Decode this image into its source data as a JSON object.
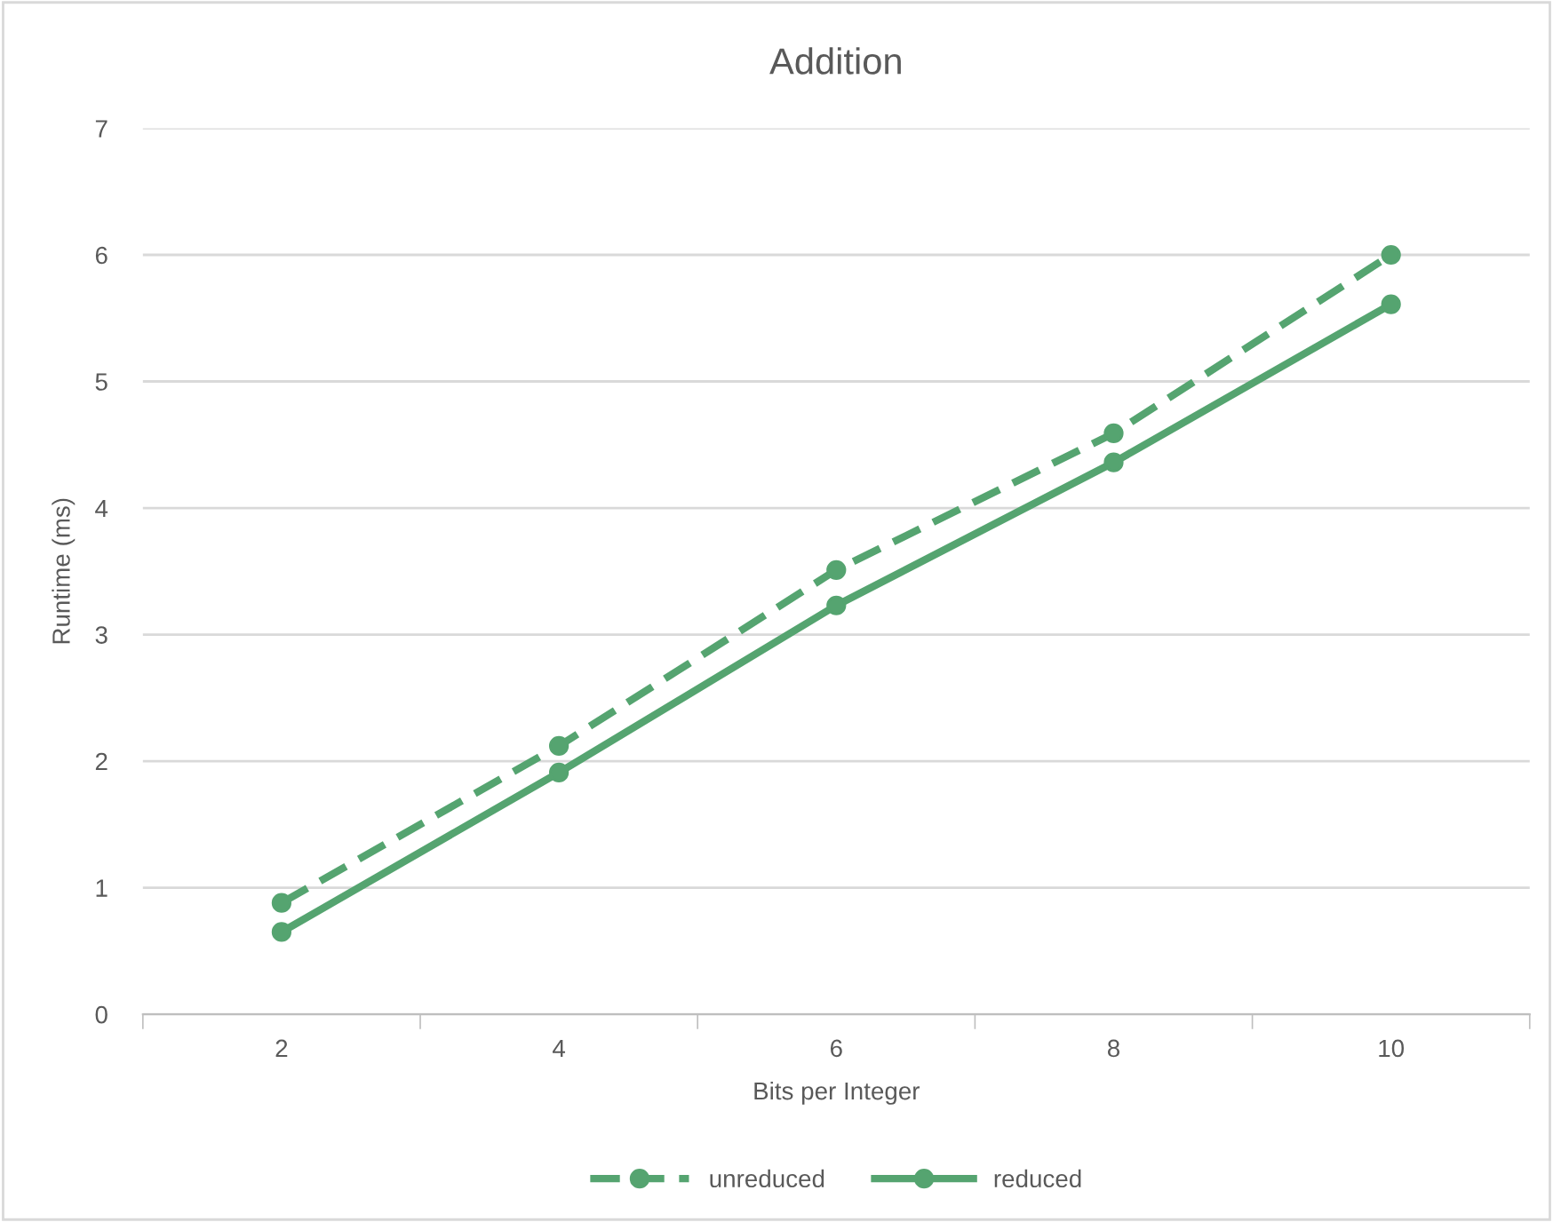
{
  "chart_data": {
    "type": "line",
    "title": "Addition",
    "xlabel": "Bits per Integer",
    "ylabel": "Runtime (ms)",
    "categories": [
      "2",
      "4",
      "6",
      "8",
      "10"
    ],
    "series": [
      {
        "name": "unreduced",
        "color": "#55a470",
        "values": [
          0.88,
          2.12,
          3.51,
          4.59,
          6.0
        ],
        "line_style": "dashed"
      },
      {
        "name": "reduced",
        "color": "#55a470",
        "values": [
          0.65,
          1.91,
          3.23,
          4.36,
          5.61
        ],
        "line_style": "solid"
      }
    ],
    "ylim": [
      0,
      7
    ],
    "yticks": [
      0,
      1,
      2,
      3,
      4,
      5,
      6,
      7
    ],
    "grid": "y",
    "legend": "bottom",
    "marker": "circle"
  }
}
